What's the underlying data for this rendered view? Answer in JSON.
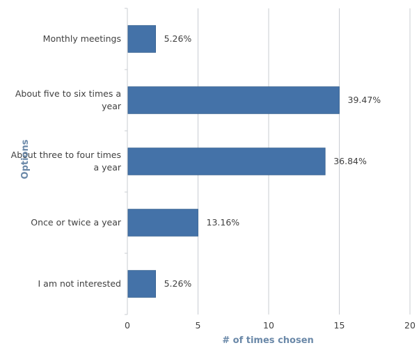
{
  "chart_data": {
    "type": "bar",
    "orientation": "horizontal",
    "categories": [
      [
        "Monthly meetings"
      ],
      [
        "About five to six times a",
        "year"
      ],
      [
        "About three to four times",
        "a year"
      ],
      [
        "Once or twice a year"
      ],
      [
        "I am not interested"
      ]
    ],
    "values": [
      2,
      15,
      14,
      5,
      2
    ],
    "data_labels": [
      "5.26%",
      "39.47%",
      "36.84%",
      "13.16%",
      "5.26%"
    ],
    "xlabel": "# of times chosen",
    "ylabel": "Options",
    "xlim": [
      0,
      20
    ],
    "xticks": [
      0,
      5,
      10,
      15,
      20
    ],
    "grid": "vertical",
    "bar_color": "#4472a8",
    "grid_color": "#c8ccd2",
    "axis_title_color": "#6a88a8"
  }
}
